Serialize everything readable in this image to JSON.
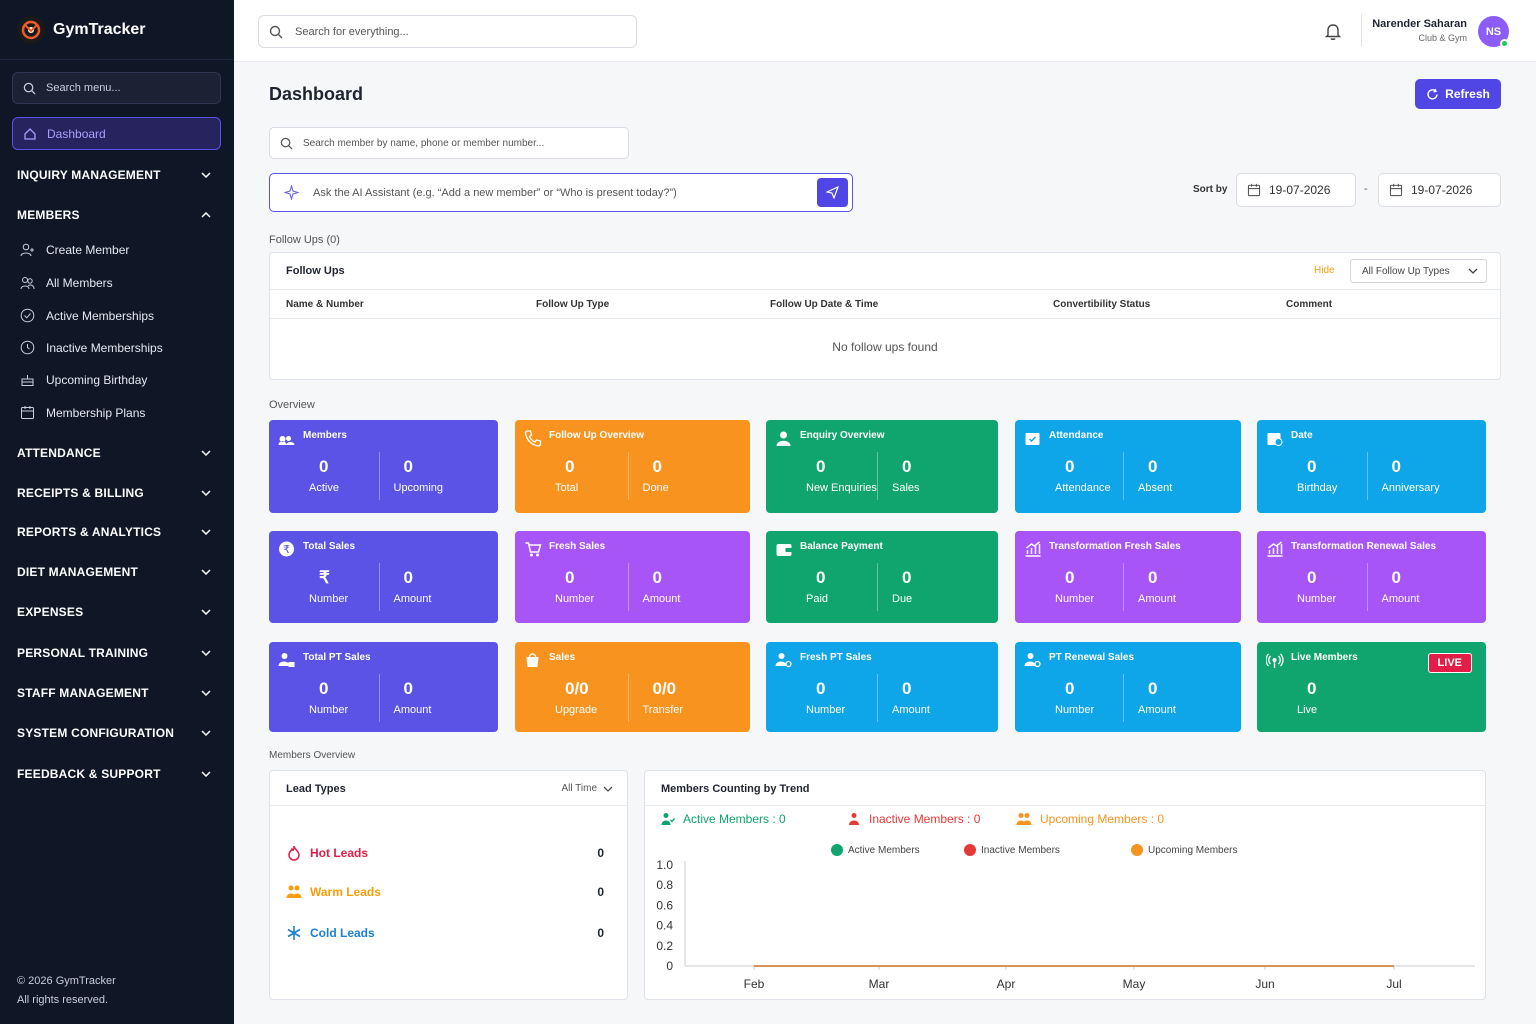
{
  "app": {
    "name": "GymTracker"
  },
  "sidebar": {
    "search_placeholder": "Search menu...",
    "active_item": "Dashboard",
    "sections": [
      {
        "label": "INQUIRY MANAGEMENT",
        "expanded": false
      },
      {
        "label": "MEMBERS",
        "expanded": true
      },
      {
        "label": "ATTENDANCE",
        "expanded": false
      },
      {
        "label": "RECEIPTS & BILLING",
        "expanded": false
      },
      {
        "label": "REPORTS & ANALYTICS",
        "expanded": false
      },
      {
        "label": "DIET MANAGEMENT",
        "expanded": false
      },
      {
        "label": "EXPENSES",
        "expanded": false
      },
      {
        "label": "PERSONAL TRAINING",
        "expanded": false
      },
      {
        "label": "STAFF MANAGEMENT",
        "expanded": false
      },
      {
        "label": "SYSTEM CONFIGURATION",
        "expanded": false
      },
      {
        "label": "FEEDBACK & SUPPORT",
        "expanded": false
      }
    ],
    "member_items": [
      "Create Member",
      "All Members",
      "Active Memberships",
      "Inactive Memberships",
      "Upcoming Birthday",
      "Membership Plans"
    ],
    "copyright": "© 2026 GymTracker",
    "rights": "All rights reserved."
  },
  "topbar": {
    "search_placeholder": "Search for everything...",
    "user_name": "Narender Saharan",
    "user_role": "Club & Gym",
    "user_initials": "NS"
  },
  "page": {
    "title": "Dashboard",
    "refresh_label": "Refresh",
    "member_search_placeholder": "Search member by name, phone or member number...",
    "ai_placeholder": "Ask the AI Assistant (e.g. “Add a new member” or “Who is present today?”)",
    "sort_by_label": "Sort by",
    "date_from": "19-07-2026",
    "date_to": "19-07-2026",
    "date_sep": "-"
  },
  "followups": {
    "section_label": "Follow Ups (0)",
    "title": "Follow Ups",
    "hide_label": "Hide",
    "filter_value": "All Follow Up Types",
    "columns": [
      "Name & Number",
      "Follow Up Type",
      "Follow Up Date & Time",
      "Convertibility Status",
      "Comment"
    ],
    "empty_text": "No follow ups found"
  },
  "overview": {
    "section_label": "Overview",
    "cards": [
      {
        "title": "Members",
        "color": "#5b52e6",
        "icon": "members-icon",
        "values": [
          {
            "v": "0",
            "l": "Active"
          },
          {
            "v": "0",
            "l": "Upcoming"
          }
        ]
      },
      {
        "title": "Follow Up Overview",
        "color": "#f7931e",
        "icon": "phone-icon",
        "values": [
          {
            "v": "0",
            "l": "Total"
          },
          {
            "v": "0",
            "l": "Done"
          }
        ]
      },
      {
        "title": "Enquiry Overview",
        "color": "#10a56e",
        "icon": "enquiry-icon",
        "values": [
          {
            "v": "0",
            "l": "New Enquiries"
          },
          {
            "v": "0",
            "l": "Sales"
          }
        ]
      },
      {
        "title": "Attendance",
        "color": "#0ea5e9",
        "icon": "calendar-check-icon",
        "values": [
          {
            "v": "0",
            "l": "Attendance"
          },
          {
            "v": "0",
            "l": "Absent"
          }
        ]
      },
      {
        "title": "Date",
        "color": "#0ea5e9",
        "icon": "calendar-clock-icon",
        "values": [
          {
            "v": "0",
            "l": "Birthday"
          },
          {
            "v": "0",
            "l": "Anniversary"
          }
        ]
      },
      {
        "title": "Total Sales",
        "color": "#5b52e6",
        "icon": "rupee-icon",
        "values": [
          {
            "v": "₹",
            "l": "Number"
          },
          {
            "v": "0",
            "l": "Amount"
          }
        ]
      },
      {
        "title": "Fresh Sales",
        "color": "#a855f7",
        "icon": "cart-icon",
        "values": [
          {
            "v": "0",
            "l": "Number"
          },
          {
            "v": "0",
            "l": "Amount"
          }
        ]
      },
      {
        "title": "Balance Payment",
        "color": "#10a56e",
        "icon": "wallet-icon",
        "values": [
          {
            "v": "0",
            "l": "Paid"
          },
          {
            "v": "0",
            "l": "Due"
          }
        ]
      },
      {
        "title": "Transformation Fresh Sales",
        "color": "#a855f7",
        "icon": "chart-up-icon",
        "values": [
          {
            "v": "0",
            "l": "Number"
          },
          {
            "v": "0",
            "l": "Amount"
          }
        ]
      },
      {
        "title": "Transformation Renewal Sales",
        "color": "#a855f7",
        "icon": "chart-up-icon",
        "values": [
          {
            "v": "0",
            "l": "Number"
          },
          {
            "v": "0",
            "l": "Amount"
          }
        ]
      },
      {
        "title": "Total PT Sales",
        "color": "#5b52e6",
        "icon": "user-lock-icon",
        "values": [
          {
            "v": "0",
            "l": "Number"
          },
          {
            "v": "0",
            "l": "Amount"
          }
        ]
      },
      {
        "title": "Sales",
        "color": "#f7931e",
        "icon": "bag-icon",
        "values": [
          {
            "v": "0/0",
            "l": "Upgrade"
          },
          {
            "v": "0/0",
            "l": "Transfer"
          }
        ]
      },
      {
        "title": "Fresh PT Sales",
        "color": "#0ea5e9",
        "icon": "user-gear-icon",
        "values": [
          {
            "v": "0",
            "l": "Number"
          },
          {
            "v": "0",
            "l": "Amount"
          }
        ]
      },
      {
        "title": "PT Renewal Sales",
        "color": "#0ea5e9",
        "icon": "user-gear-icon",
        "values": [
          {
            "v": "0",
            "l": "Number"
          },
          {
            "v": "0",
            "l": "Amount"
          }
        ]
      },
      {
        "title": "Live Members",
        "color": "#10a56e",
        "icon": "broadcast-icon",
        "badge": "LIVE",
        "values": [
          {
            "v": "0",
            "l": "Live"
          }
        ]
      }
    ]
  },
  "members_overview": {
    "section_label": "Members Overview",
    "lead_types": {
      "title": "Lead Types",
      "filter": "All Time",
      "items": [
        {
          "label": "Hot Leads",
          "count": "0",
          "color": "#e11d48"
        },
        {
          "label": "Warm Leads",
          "count": "0",
          "color": "#f59e0b"
        },
        {
          "label": "Cold Leads",
          "count": "0",
          "color": "#1d7fd6"
        }
      ]
    },
    "trend": {
      "title": "Members Counting by Trend",
      "active_label": "Active Members : 0",
      "inactive_label": "Inactive Members : 0",
      "upcoming_label": "Upcoming Members : 0"
    }
  },
  "chart_data": {
    "type": "line",
    "x": [
      "Feb",
      "Mar",
      "Apr",
      "May",
      "Jun",
      "Jul"
    ],
    "series": [
      {
        "name": "Active Members",
        "color": "#10a56e",
        "values": [
          0,
          0,
          0,
          0,
          0,
          0
        ]
      },
      {
        "name": "Inactive Members",
        "color": "#e53935",
        "values": [
          0,
          0,
          0,
          0,
          0,
          0
        ]
      },
      {
        "name": "Upcoming Members",
        "color": "#f7931e",
        "values": [
          0,
          0,
          0,
          0,
          0,
          0
        ]
      }
    ],
    "yticks": [
      "0",
      "0.2",
      "0.4",
      "0.6",
      "0.8",
      "1.0"
    ],
    "ylim": [
      0,
      1
    ],
    "grid": false,
    "legend": "top-center"
  }
}
